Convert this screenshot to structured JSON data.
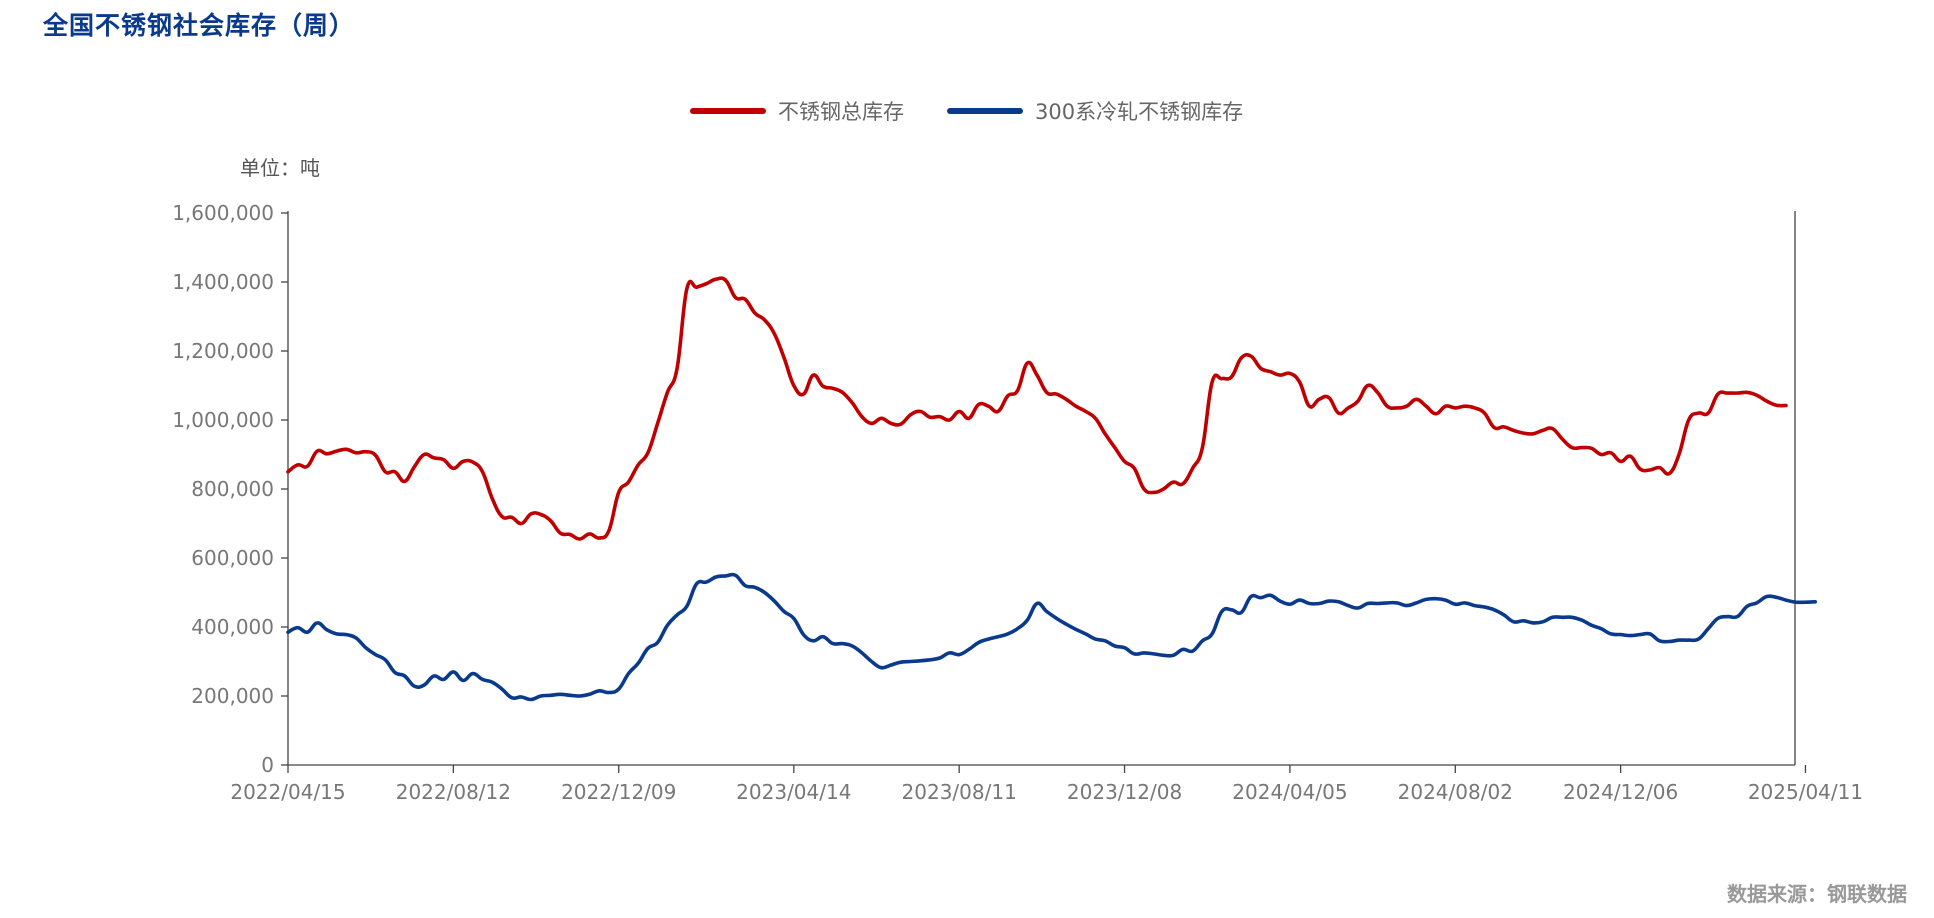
{
  "header": {
    "title": "全国不锈钢社会库存（周）",
    "unit": "单位：吨",
    "source": "数据来源：钢联数据"
  },
  "colors": {
    "total": "#c00000",
    "cold300": "#0a3a8c",
    "title": "#0a3a8c",
    "axis": "#444444",
    "tick_text": "#777777"
  },
  "chart_data": {
    "type": "line",
    "title": "全国不锈钢社会库存（周）",
    "ylabel": "单位：吨",
    "xlabel": "",
    "ylim": [
      0,
      1600000
    ],
    "y_ticks": [
      0,
      200000,
      400000,
      600000,
      800000,
      1000000,
      1200000,
      1400000,
      1600000
    ],
    "y_tick_labels": [
      "0",
      "200,000",
      "400,000",
      "600,000",
      "800,000",
      "1,000,000",
      "1,200,000",
      "1,400,000",
      "1,600,000"
    ],
    "x_tick_labels": [
      "2022/04/15",
      "2022/08/12",
      "2022/12/09",
      "2023/04/14",
      "2023/08/11",
      "2023/12/08",
      "2024/04/05",
      "2024/08/02",
      "2024/12/06",
      "2025/04/11"
    ],
    "x_tick_weeks": [
      0,
      17,
      34,
      52,
      69,
      86,
      103,
      120,
      137,
      156
    ],
    "legend_position": "top-center",
    "grid": false,
    "series": [
      {
        "name": "不锈钢总库存",
        "color": "#c00000",
        "values": [
          850000,
          870000,
          866000,
          910000,
          902000,
          910000,
          915000,
          905000,
          908000,
          898000,
          850000,
          850000,
          822000,
          865000,
          900000,
          890000,
          885000,
          860000,
          880000,
          878000,
          850000,
          772000,
          720000,
          718000,
          700000,
          728000,
          726000,
          708000,
          672000,
          668000,
          655000,
          670000,
          658000,
          680000,
          790000,
          820000,
          870000,
          905000,
          990000,
          1080000,
          1150000,
          1380000,
          1385000,
          1395000,
          1408000,
          1405000,
          1355000,
          1350000,
          1310000,
          1290000,
          1250000,
          1180000,
          1100000,
          1075000,
          1130000,
          1098000,
          1092000,
          1080000,
          1050000,
          1010000,
          990000,
          1005000,
          990000,
          988000,
          1015000,
          1025000,
          1008000,
          1010000,
          1000000,
          1025000,
          1005000,
          1045000,
          1040000,
          1025000,
          1070000,
          1085000,
          1165000,
          1130000,
          1080000,
          1075000,
          1060000,
          1040000,
          1025000,
          1005000,
          960000,
          920000,
          880000,
          860000,
          800000,
          790000,
          800000,
          820000,
          815000,
          860000,
          920000,
          1110000,
          1120000,
          1125000,
          1180000,
          1185000,
          1150000,
          1140000,
          1130000,
          1135000,
          1110000,
          1040000,
          1060000,
          1065000,
          1020000,
          1035000,
          1055000,
          1100000,
          1080000,
          1040000,
          1035000,
          1040000,
          1060000,
          1040000,
          1018000,
          1040000,
          1035000,
          1040000,
          1035000,
          1020000,
          978000,
          980000,
          970000,
          962000,
          960000,
          970000,
          975000,
          945000,
          920000,
          920000,
          918000,
          900000,
          905000,
          880000,
          895000,
          858000,
          855000,
          862000,
          845000,
          900000,
          1000000,
          1020000,
          1020000,
          1075000,
          1078000,
          1078000,
          1080000,
          1072000,
          1055000,
          1043000,
          1042000
        ]
      },
      {
        "name": "300系冷轧不锈钢库存",
        "color": "#0a3a8c",
        "values": [
          385000,
          398000,
          385000,
          412000,
          392000,
          380000,
          378000,
          368000,
          340000,
          320000,
          305000,
          268000,
          258000,
          228000,
          232000,
          258000,
          248000,
          270000,
          245000,
          265000,
          248000,
          240000,
          220000,
          195000,
          197000,
          190000,
          200000,
          202000,
          205000,
          202000,
          200000,
          205000,
          215000,
          210000,
          220000,
          265000,
          295000,
          338000,
          355000,
          405000,
          435000,
          460000,
          525000,
          530000,
          545000,
          548000,
          550000,
          520000,
          515000,
          500000,
          475000,
          445000,
          425000,
          378000,
          360000,
          372000,
          352000,
          352000,
          345000,
          325000,
          300000,
          282000,
          290000,
          298000,
          300000,
          302000,
          305000,
          310000,
          325000,
          320000,
          335000,
          355000,
          365000,
          372000,
          380000,
          395000,
          420000,
          468000,
          445000,
          425000,
          408000,
          393000,
          380000,
          365000,
          360000,
          345000,
          340000,
          322000,
          325000,
          322000,
          318000,
          318000,
          335000,
          330000,
          360000,
          380000,
          445000,
          450000,
          442000,
          488000,
          485000,
          492000,
          475000,
          466000,
          478000,
          468000,
          468000,
          475000,
          473000,
          462000,
          455000,
          468000,
          468000,
          470000,
          470000,
          462000,
          470000,
          480000,
          482000,
          478000,
          466000,
          470000,
          462000,
          458000,
          450000,
          435000,
          415000,
          418000,
          412000,
          415000,
          428000,
          428000,
          428000,
          420000,
          405000,
          395000,
          380000,
          378000,
          375000,
          378000,
          380000,
          360000,
          358000,
          362000,
          362000,
          365000,
          395000,
          425000,
          430000,
          430000,
          460000,
          470000,
          488000,
          486000,
          478000,
          472000,
          472000,
          473000
        ]
      }
    ]
  }
}
